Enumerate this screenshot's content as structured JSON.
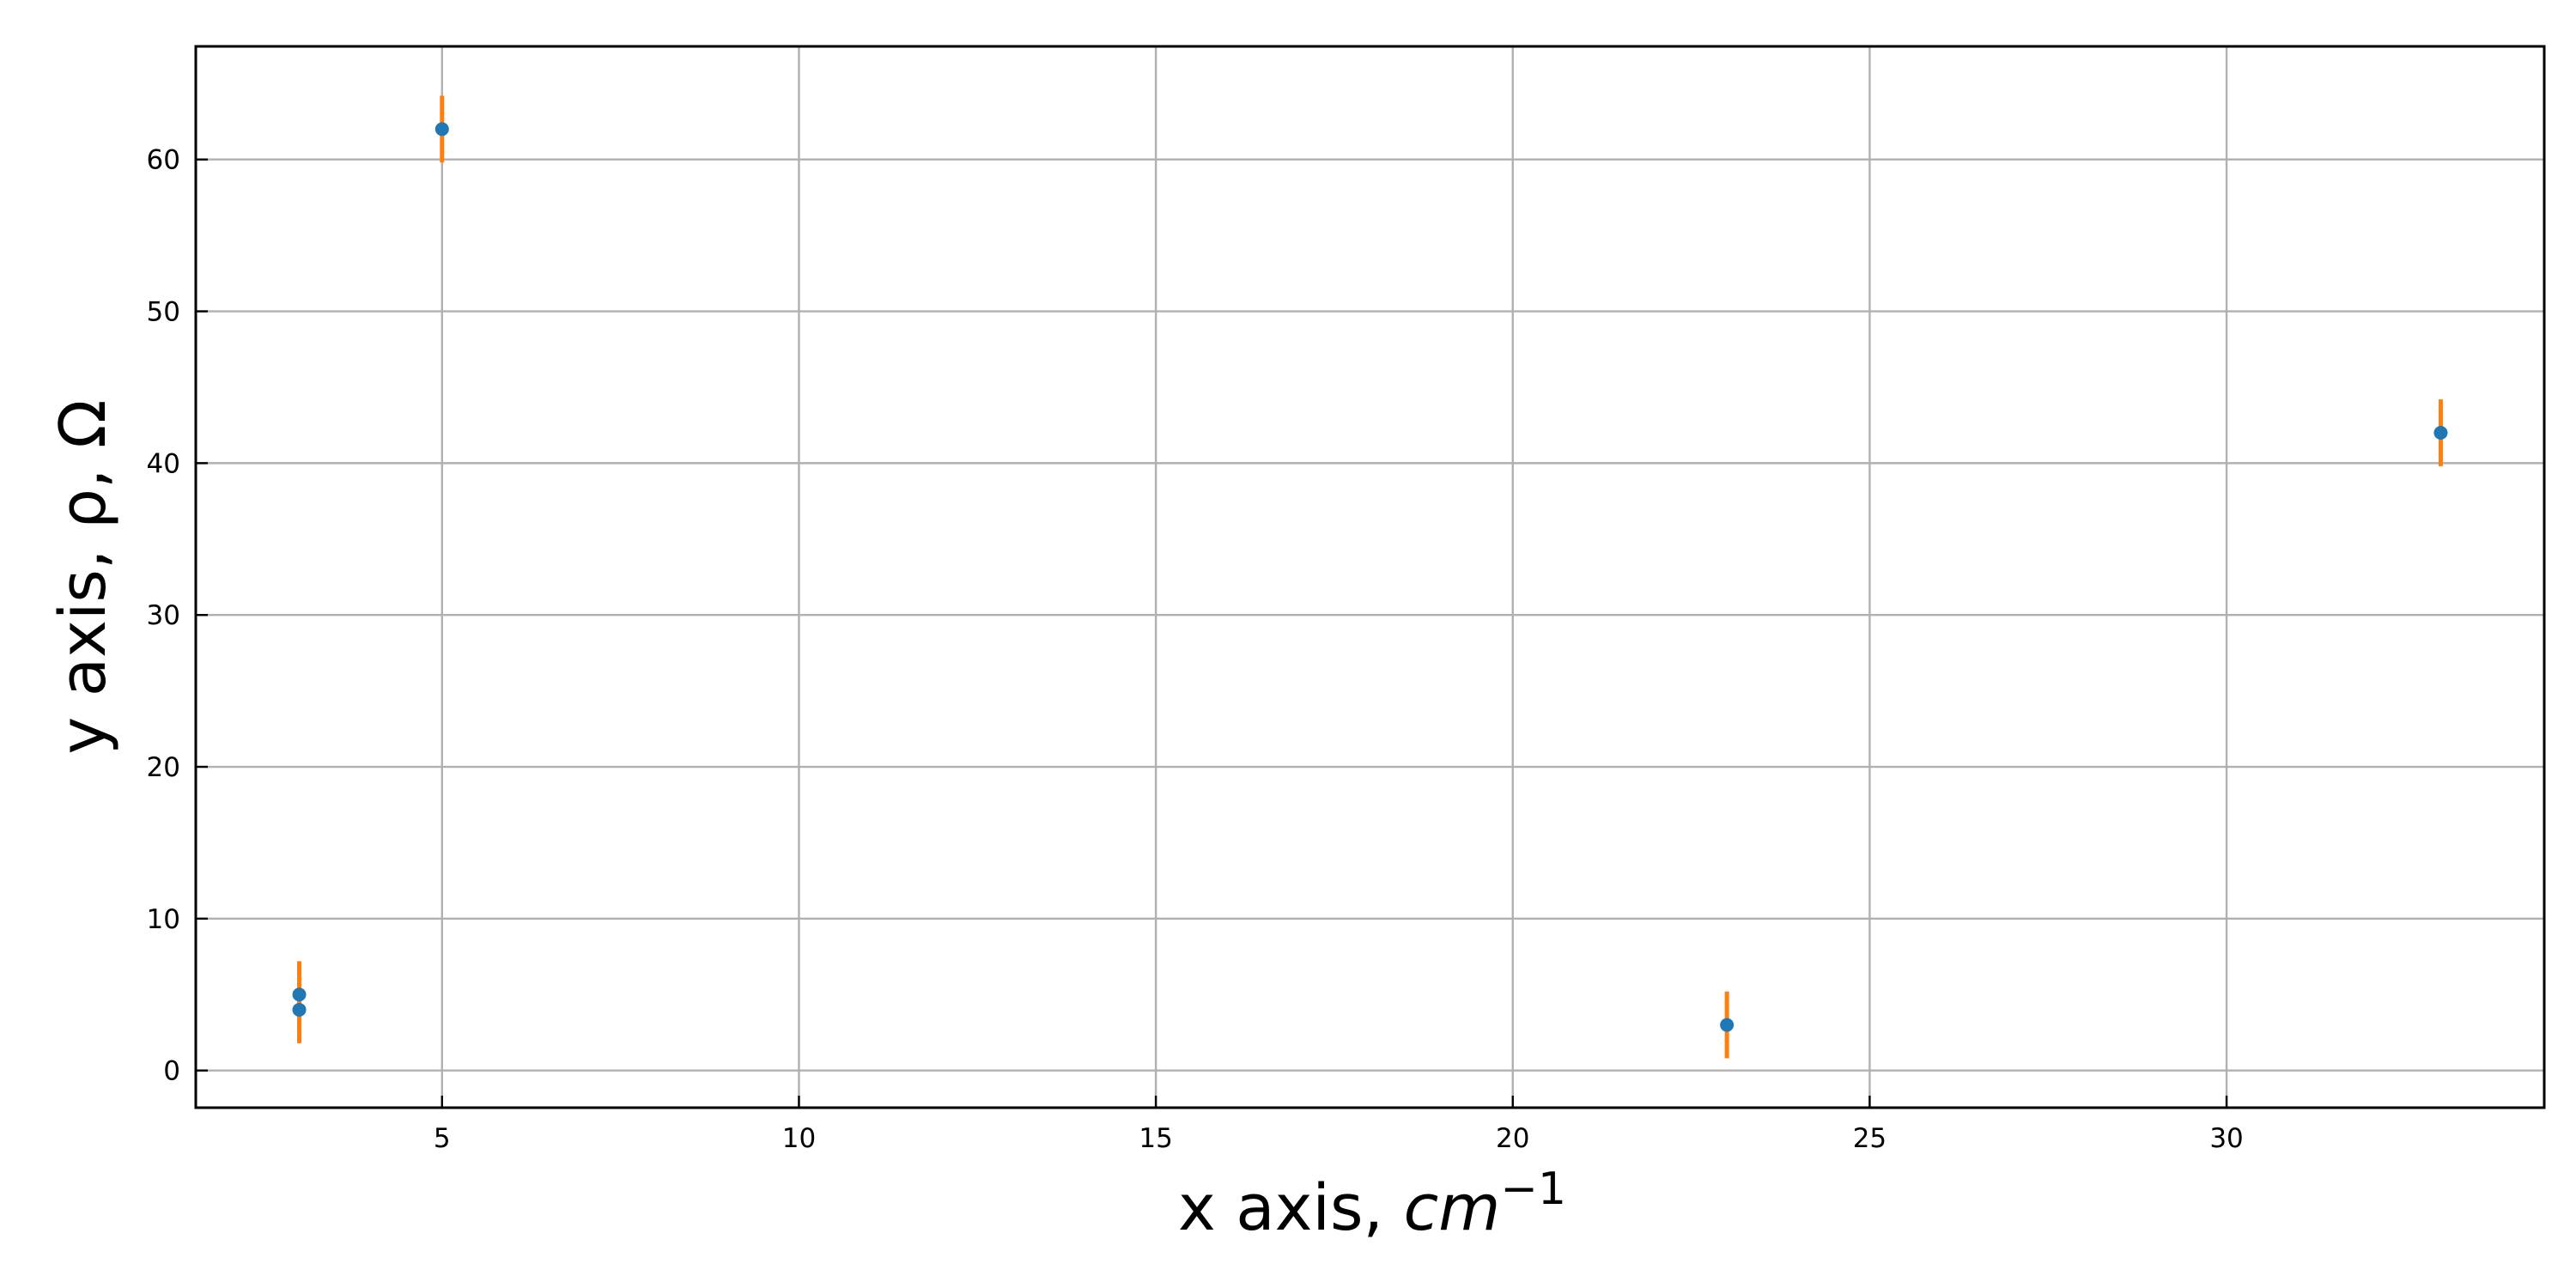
{
  "chart_data": {
    "type": "scatter",
    "title": "",
    "xlabel": "x axis, ",
    "xlabel_unit": "cm",
    "xlabel_exponent": "−1",
    "ylabel": "y axis, ρ, Ω",
    "xlim": [
      1.55,
      34.45
    ],
    "ylim": [
      -2.45,
      67.45
    ],
    "x_ticks": [
      5,
      10,
      15,
      20,
      25,
      30
    ],
    "y_ticks": [
      0,
      10,
      20,
      30,
      40,
      50,
      60
    ],
    "grid": true,
    "legend": "none",
    "series": [
      {
        "x": [
          3,
          3,
          5,
          23,
          33
        ],
        "y": [
          5,
          4,
          62,
          3,
          42
        ],
        "yerr": [
          2.2,
          2.2,
          2.2,
          2.2,
          2.2
        ],
        "marker_color": "#1f77b4",
        "errorbar_color": "#ff7f0e"
      }
    ]
  }
}
